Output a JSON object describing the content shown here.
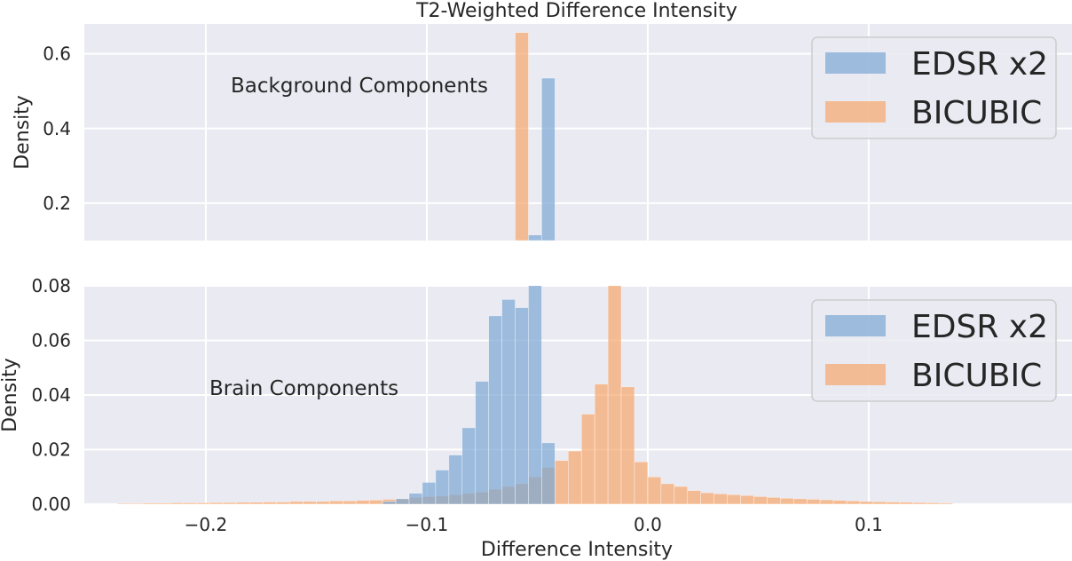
{
  "title": "T2-Weighted Difference Intensity",
  "colors": {
    "background": "#eaeaf2",
    "grid": "#ffffff",
    "edsr": "#7aa6d4",
    "bicubic": "#f6a66c",
    "text": "#262626"
  },
  "chart_data": [
    {
      "type": "bar",
      "panel": "top",
      "annotation": "Background Components",
      "ylabel": "Density",
      "xlabel": "",
      "xlim": [
        -0.255,
        0.192
      ],
      "ylim": [
        0.1,
        0.68
      ],
      "yticks": [
        0.2,
        0.4,
        0.6
      ],
      "ytick_labels": [
        "0.2",
        "0.4",
        "0.6"
      ],
      "xticks": [
        -0.2,
        -0.1,
        0.0,
        0.1
      ],
      "grid": true,
      "legend": {
        "placement": "top-right",
        "entries": [
          "EDSR x2",
          "BICUBIC"
        ]
      },
      "bin_width": 0.006,
      "series": [
        {
          "name": "EDSR x2",
          "bins": [
            {
              "x0": -0.054,
              "value": 0.115
            },
            {
              "x0": -0.048,
              "value": 0.535
            }
          ]
        },
        {
          "name": "BICUBIC",
          "bins": [
            {
              "x0": -0.06,
              "value": 0.657
            }
          ]
        }
      ]
    },
    {
      "type": "bar",
      "panel": "bottom",
      "annotation": "Brain Components",
      "ylabel": "Density",
      "xlabel": "Difference Intensity",
      "xlim": [
        -0.255,
        0.192
      ],
      "ylim": [
        0,
        0.08
      ],
      "yticks": [
        0,
        0.02,
        0.04,
        0.06,
        0.08
      ],
      "ytick_labels": [
        "0.00",
        "0.02",
        "0.04",
        "0.06",
        "0.08"
      ],
      "xticks": [
        -0.2,
        -0.1,
        0.0,
        0.1
      ],
      "xtick_labels": [
        "−0.2",
        "−0.1",
        "0.0",
        "0.1"
      ],
      "grid": true,
      "legend": {
        "placement": "top-right",
        "entries": [
          "EDSR x2",
          "BICUBIC"
        ]
      },
      "bin_width": 0.006,
      "series": [
        {
          "name": "EDSR x2",
          "x_start": -0.12,
          "values": [
            0.001,
            0.002,
            0.004,
            0.008,
            0.0125,
            0.018,
            0.028,
            0.045,
            0.069,
            0.075,
            0.072,
            0.09,
            0.0225
          ]
        },
        {
          "name": "BICUBIC",
          "x_start": -0.24,
          "values": [
            0.0003,
            0.0003,
            0.0004,
            0.0004,
            0.0005,
            0.0005,
            0.0005,
            0.0006,
            0.0006,
            0.0007,
            0.0007,
            0.0008,
            0.0008,
            0.001,
            0.001,
            0.001,
            0.0012,
            0.0012,
            0.0014,
            0.0015,
            0.0018,
            0.002,
            0.0025,
            0.0028,
            0.003,
            0.0035,
            0.004,
            0.0045,
            0.0055,
            0.0065,
            0.0075,
            0.01,
            0.0135,
            0.016,
            0.0195,
            0.033,
            0.044,
            0.09,
            0.043,
            0.0155,
            0.01,
            0.0075,
            0.0065,
            0.005,
            0.0042,
            0.0038,
            0.0035,
            0.0032,
            0.0028,
            0.0025,
            0.0022,
            0.002,
            0.0018,
            0.0016,
            0.0014,
            0.0012,
            0.001,
            0.0009,
            0.0008,
            0.0007,
            0.0006,
            0.0005,
            0.0004
          ]
        }
      ]
    }
  ]
}
